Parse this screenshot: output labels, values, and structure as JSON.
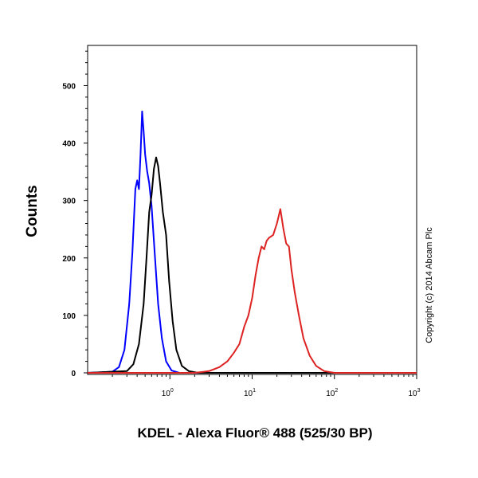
{
  "chart_data": {
    "type": "line",
    "xlabel": "KDEL - Alexa Fluor® 488 (525/30 BP)",
    "ylabel": "Counts",
    "xscale": "log",
    "xlim": [
      0.1,
      1000
    ],
    "ylim": [
      0,
      570
    ],
    "x_ticks": [
      {
        "base": "10",
        "exp": "0"
      },
      {
        "base": "10",
        "exp": "1"
      },
      {
        "base": "10",
        "exp": "2"
      },
      {
        "base": "10",
        "exp": "3"
      }
    ],
    "x_tick_values": [
      1,
      10,
      100,
      1000
    ],
    "y_ticks": [
      "0",
      "100",
      "200",
      "300",
      "400",
      "500"
    ],
    "y_tick_values": [
      0,
      100,
      200,
      300,
      400,
      500
    ],
    "grid": false,
    "series": [
      {
        "color": "#0000ff",
        "points": [
          [
            0.1,
            0
          ],
          [
            0.2,
            2
          ],
          [
            0.24,
            10
          ],
          [
            0.28,
            40
          ],
          [
            0.32,
            120
          ],
          [
            0.35,
            210
          ],
          [
            0.38,
            320
          ],
          [
            0.4,
            335
          ],
          [
            0.42,
            320
          ],
          [
            0.44,
            380
          ],
          [
            0.46,
            455
          ],
          [
            0.48,
            420
          ],
          [
            0.5,
            380
          ],
          [
            0.53,
            350
          ],
          [
            0.56,
            330
          ],
          [
            0.6,
            290
          ],
          [
            0.66,
            200
          ],
          [
            0.72,
            120
          ],
          [
            0.8,
            60
          ],
          [
            0.9,
            20
          ],
          [
            1.05,
            4
          ],
          [
            1.3,
            0
          ],
          [
            1000,
            0
          ]
        ]
      },
      {
        "color": "#000000",
        "points": [
          [
            0.1,
            0
          ],
          [
            0.3,
            3
          ],
          [
            0.36,
            15
          ],
          [
            0.42,
            50
          ],
          [
            0.48,
            120
          ],
          [
            0.52,
            200
          ],
          [
            0.56,
            280
          ],
          [
            0.6,
            310
          ],
          [
            0.64,
            355
          ],
          [
            0.68,
            375
          ],
          [
            0.72,
            360
          ],
          [
            0.76,
            330
          ],
          [
            0.82,
            280
          ],
          [
            0.9,
            240
          ],
          [
            0.98,
            160
          ],
          [
            1.08,
            90
          ],
          [
            1.2,
            40
          ],
          [
            1.4,
            12
          ],
          [
            1.7,
            3
          ],
          [
            2.2,
            0
          ],
          [
            1000,
            0
          ]
        ]
      },
      {
        "color": "#dd2222",
        "points": [
          [
            0.1,
            0
          ],
          [
            2,
            0
          ],
          [
            3,
            3
          ],
          [
            4,
            10
          ],
          [
            5,
            20
          ],
          [
            6,
            35
          ],
          [
            7,
            50
          ],
          [
            8,
            80
          ],
          [
            9,
            100
          ],
          [
            10,
            130
          ],
          [
            11,
            170
          ],
          [
            12,
            200
          ],
          [
            13,
            220
          ],
          [
            14,
            215
          ],
          [
            15,
            230
          ],
          [
            16,
            235
          ],
          [
            18,
            240
          ],
          [
            20,
            260
          ],
          [
            22,
            285
          ],
          [
            24,
            250
          ],
          [
            26,
            225
          ],
          [
            28,
            220
          ],
          [
            30,
            180
          ],
          [
            33,
            140
          ],
          [
            37,
            100
          ],
          [
            42,
            60
          ],
          [
            50,
            30
          ],
          [
            60,
            12
          ],
          [
            75,
            3
          ],
          [
            100,
            0
          ],
          [
            1000,
            0
          ]
        ]
      }
    ],
    "annotation": "Copyright (c) 2014 Abcam Plc"
  }
}
